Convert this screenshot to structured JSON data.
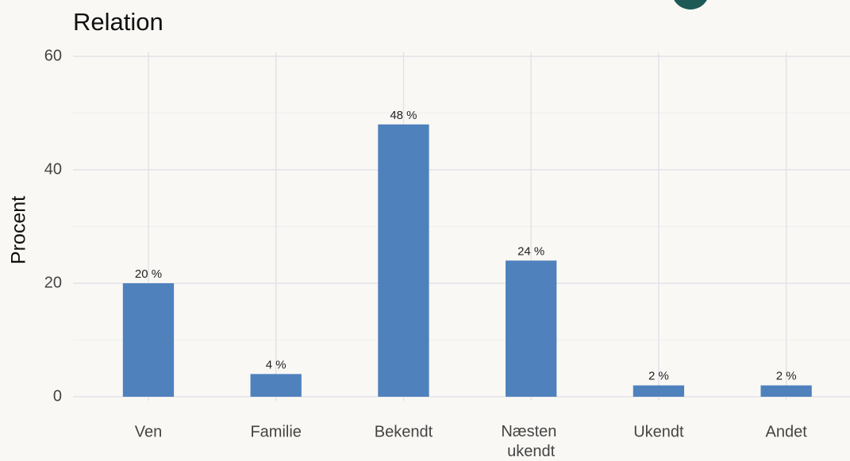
{
  "chart_data": {
    "type": "bar",
    "title": "Relation",
    "ylabel": "Procent",
    "categories": [
      "Ven",
      "Familie",
      "Bekendt",
      "Næsten ukendt",
      "Ukendt",
      "Andet"
    ],
    "values": [
      20,
      4,
      48,
      24,
      2,
      2
    ],
    "value_labels": [
      "20 %",
      "4 %",
      "48 %",
      "24 %",
      "2 %",
      "2 %"
    ],
    "color": "#4f81bd",
    "ylim": [
      0,
      60
    ],
    "yticks": [
      0,
      20,
      40,
      60
    ],
    "minor_yticks": [
      10,
      30,
      50
    ],
    "grid": true
  }
}
